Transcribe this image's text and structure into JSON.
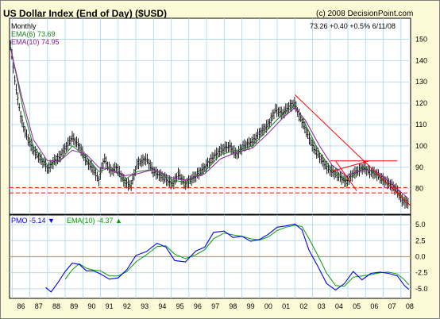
{
  "title": "US Dollar Index (End of Day) ($USD)",
  "copyright": "(c) 2008 DecisionPoint.com",
  "main_panel": {
    "period": "Monthly",
    "ema6_label": "EMA(6) 73.69",
    "ema10_label": "EMA(10) 74.95",
    "quote": "73.26  +0.40  +0.5%  6/11/08"
  },
  "pmo_panel": {
    "pmo_label": "PMO  -5.14",
    "pmo_arrow": "▼",
    "ema_label": "EMA(10)  -4.37",
    "ema_arrow": "▲"
  },
  "colors": {
    "background": "#fdfad8",
    "plot_bg": "#ffffff",
    "grid": "#a8d8f0",
    "price": "#000000",
    "ema6": "#208020",
    "ema10": "#9020a0",
    "trendline": "#ff0000",
    "support": "#ff0000",
    "pmo": "#0000ff",
    "pmo_ema": "#00a000",
    "zero_line": "#e09040"
  },
  "chart_data": [
    {
      "type": "line",
      "title": "US Dollar Index (End of Day) ($USD)",
      "x_ticks": [
        "86",
        "87",
        "88",
        "89",
        "90",
        "91",
        "92",
        "93",
        "94",
        "95",
        "96",
        "97",
        "98",
        "99",
        "00",
        "01",
        "02",
        "03",
        "04",
        "05",
        "06",
        "07",
        "08"
      ],
      "y_ticks": [
        80,
        90,
        100,
        110,
        120,
        130,
        140,
        150
      ],
      "ylim": [
        68,
        155
      ],
      "xlim": [
        1985.85,
        2008.55
      ],
      "grid": true,
      "series": [
        {
          "name": "Price",
          "x": [
            1985.9,
            1986.2,
            1986.5,
            1986.8,
            1987.2,
            1987.5,
            1987.9,
            1988.0,
            1988.4,
            1988.7,
            1989.0,
            1989.4,
            1989.8,
            1990.2,
            1990.6,
            1990.9,
            1991.2,
            1991.6,
            1991.9,
            1992.3,
            1992.7,
            1993.1,
            1993.6,
            1994.0,
            1994.6,
            1995.1,
            1995.4,
            1995.8,
            1996.4,
            1996.9,
            1997.4,
            1997.8,
            1998.3,
            1998.7,
            1999.1,
            1999.6,
            2000.0,
            2000.5,
            2000.9,
            2001.3,
            2001.6,
            2002.0,
            2002.2,
            2002.6,
            2003.0,
            2003.4,
            2003.8,
            2004.1,
            2004.5,
            2004.9,
            2005.3,
            2005.9,
            2006.2,
            2006.6,
            2007.0,
            2007.4,
            2007.8,
            2008.1,
            2008.45
          ],
          "values": [
            148,
            128,
            113,
            105,
            98,
            95,
            91,
            89,
            93,
            95,
            99,
            104,
            100,
            93,
            89,
            84,
            94,
            88,
            90,
            84,
            81,
            92,
            94,
            88,
            85,
            82,
            87,
            82,
            86,
            90,
            95,
            98,
            100,
            96,
            100,
            102,
            106,
            110,
            117,
            115,
            118,
            120,
            115,
            108,
            100,
            95,
            90,
            88,
            86,
            83,
            87,
            90,
            88,
            87,
            84,
            82,
            79,
            74,
            73
          ]
        },
        {
          "name": "EMA(6)",
          "x": [
            1985.9,
            1986.6,
            1987.2,
            1988.0,
            1988.7,
            1989.4,
            1990.2,
            1990.9,
            1991.6,
            1992.3,
            1993.1,
            1994.0,
            1995.1,
            1995.8,
            1996.9,
            1997.8,
            1998.7,
            1999.6,
            2000.5,
            2001.3,
            2002.0,
            2002.6,
            2003.4,
            2004.1,
            2004.9,
            2005.9,
            2006.6,
            2007.4,
            2008.45
          ],
          "values": [
            147,
            118,
            100,
            91,
            93,
            100,
            95,
            88,
            90,
            84,
            88,
            89,
            84,
            83,
            88,
            96,
            98,
            100,
            108,
            115,
            119,
            110,
            97,
            89,
            84,
            90,
            87,
            81,
            74
          ]
        },
        {
          "name": "EMA(10)",
          "x": [
            1985.9,
            1986.6,
            1987.2,
            1988.0,
            1988.7,
            1989.4,
            1990.2,
            1990.9,
            1991.6,
            1992.3,
            1993.1,
            1994.0,
            1995.1,
            1995.8,
            1996.9,
            1997.8,
            1998.7,
            1999.6,
            2000.5,
            2001.3,
            2002.0,
            2002.6,
            2003.4,
            2004.1,
            2004.9,
            2005.9,
            2006.6,
            2007.4,
            2008.45
          ],
          "values": [
            146,
            121,
            103,
            93,
            93,
            98,
            96,
            90,
            89,
            86,
            87,
            89,
            85,
            84,
            87,
            94,
            97,
            99,
            106,
            113,
            118,
            112,
            100,
            91,
            86,
            89,
            88,
            83,
            75
          ]
        }
      ],
      "annotations": {
        "trendlines": [
          {
            "x": [
              2002.0,
              2008.55
            ],
            "values": [
              124,
              72
            ]
          },
          {
            "x": [
              2004.3,
              2005.5
            ],
            "values": [
              93,
              79
            ]
          },
          {
            "x": [
              2004.0,
              2006.2
            ],
            "values": [
              88,
              93
            ]
          }
        ],
        "resistance": {
          "x": [
            2004.0,
            2007.8
          ],
          "value": 93
        },
        "support": [
          78,
          80.5
        ]
      }
    },
    {
      "type": "line",
      "title": "PMO",
      "x_ticks": [
        "86",
        "87",
        "88",
        "89",
        "90",
        "91",
        "92",
        "93",
        "94",
        "95",
        "96",
        "97",
        "98",
        "99",
        "00",
        "01",
        "02",
        "03",
        "04",
        "05",
        "06",
        "07",
        "08"
      ],
      "y_ticks": [
        -5.0,
        -2.5,
        0,
        2.5,
        5.0
      ],
      "ylim": [
        -6.5,
        6.5
      ],
      "xlim": [
        1985.85,
        2008.55
      ],
      "series": [
        {
          "name": "PMO",
          "x": [
            1987.9,
            1988.2,
            1988.6,
            1989.0,
            1989.4,
            1989.8,
            1990.2,
            1990.6,
            1991.0,
            1991.5,
            1992.0,
            1992.5,
            1993.0,
            1993.6,
            1994.2,
            1994.7,
            1995.2,
            1995.8,
            1996.4,
            1996.9,
            1997.4,
            1998.0,
            1998.5,
            1999.0,
            1999.5,
            2000.0,
            2000.5,
            2001.0,
            2001.5,
            2002.0,
            2002.4,
            2002.8,
            2003.3,
            2003.8,
            2004.3,
            2004.8,
            2005.3,
            2005.8,
            2006.3,
            2006.8,
            2007.3,
            2007.8,
            2008.2,
            2008.45
          ],
          "values": [
            -4.8,
            -5.5,
            -4.0,
            -2.3,
            -1.0,
            -1.2,
            -2.2,
            -2.2,
            -2.7,
            -3.5,
            -3.3,
            -2.0,
            0.2,
            0.8,
            2.1,
            1.5,
            -0.6,
            -0.8,
            0.9,
            1.5,
            3.8,
            4.0,
            3.0,
            3.2,
            2.4,
            2.7,
            3.5,
            4.6,
            4.8,
            5.1,
            4.2,
            1.0,
            -1.5,
            -4.2,
            -5.2,
            -4.2,
            -2.3,
            -3.6,
            -2.6,
            -2.4,
            -2.6,
            -3.0,
            -4.5,
            -5.1
          ]
        },
        {
          "name": "EMA(10)",
          "x": [
            1989.0,
            1989.4,
            1989.8,
            1990.2,
            1990.6,
            1991.0,
            1991.5,
            1992.0,
            1992.5,
            1993.0,
            1993.6,
            1994.2,
            1994.7,
            1995.2,
            1995.8,
            1996.4,
            1996.9,
            1997.4,
            1998.0,
            1998.5,
            1999.0,
            1999.5,
            2000.0,
            2000.5,
            2001.0,
            2001.5,
            2002.0,
            2002.4,
            2002.8,
            2003.3,
            2003.8,
            2004.3,
            2004.8,
            2005.3,
            2005.8,
            2006.3,
            2006.8,
            2007.3,
            2007.8,
            2008.2,
            2008.45
          ],
          "values": [
            -3.5,
            -2.0,
            -1.1,
            -1.8,
            -2.1,
            -2.2,
            -3.0,
            -3.0,
            -2.3,
            -0.8,
            0.3,
            1.6,
            1.7,
            0.4,
            -0.3,
            0.3,
            1.1,
            2.8,
            3.7,
            3.4,
            3.2,
            2.8,
            2.6,
            3.1,
            4.1,
            4.6,
            4.9,
            4.7,
            2.8,
            0.2,
            -2.6,
            -4.5,
            -4.6,
            -3.2,
            -3.0,
            -2.8,
            -2.5,
            -2.4,
            -2.7,
            -3.6,
            -4.4
          ]
        }
      ]
    }
  ]
}
